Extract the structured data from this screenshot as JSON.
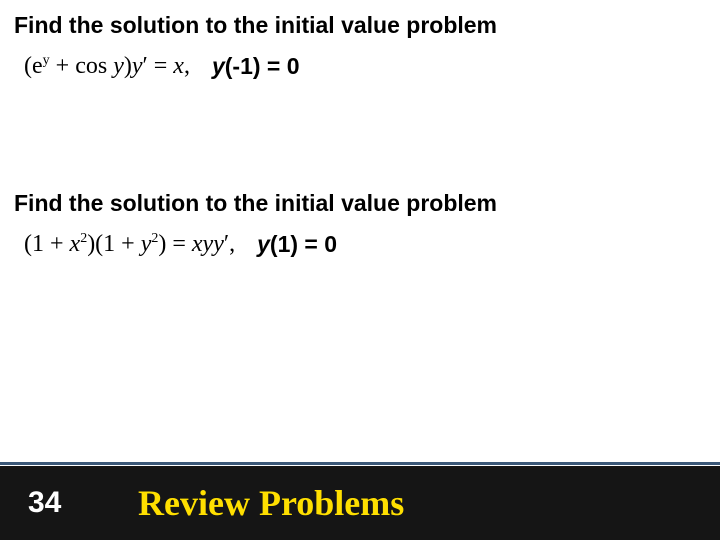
{
  "problem1": {
    "prompt": "Find the solution to the initial value problem",
    "equation_html": "(e<span class='sup'>y</span> + cos <i>y</i>)<i>y</i>&prime; = <i>x</i>,",
    "cond_y": "y",
    "cond_rest": "(-1) = 0"
  },
  "problem2": {
    "prompt": "Find the solution to the initial value problem",
    "equation_html": "(1 + <i>x</i><span class='sup'>2</span>)(1 + <i>y</i><span class='sup'>2</span>) = <i>xyy</i>&prime;,",
    "cond_y": "y",
    "cond_rest": "(1) = 0"
  },
  "footer": {
    "page": "34",
    "title": "Review Problems",
    "line_color": "#3b5878",
    "bg_color": "#151515",
    "title_color": "#ffdf00",
    "page_color": "#ffffff"
  }
}
